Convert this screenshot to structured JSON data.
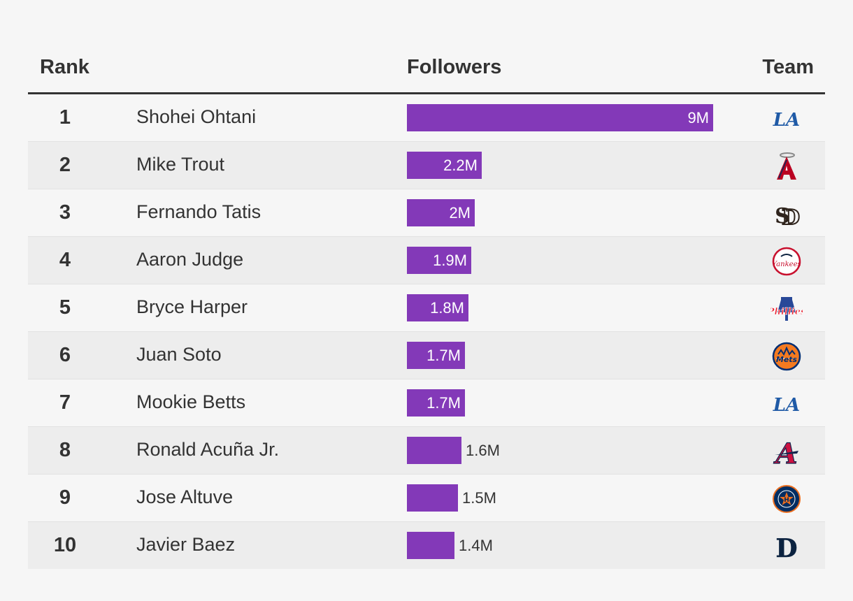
{
  "headers": {
    "rank": "Rank",
    "followers": "Followers",
    "team": "Team"
  },
  "chart_data": {
    "type": "bar",
    "orientation": "horizontal",
    "max_value": 9,
    "unit_suffix": "M",
    "rows": [
      {
        "rank": "1",
        "name": "Shohei Ohtani",
        "value": 9,
        "label": "9M",
        "team": "Los Angeles Dodgers",
        "logo": "dodgers-logo"
      },
      {
        "rank": "2",
        "name": "Mike Trout",
        "value": 2.2,
        "label": "2.2M",
        "team": "Los Angeles Angels",
        "logo": "angels-logo"
      },
      {
        "rank": "3",
        "name": "Fernando Tatis",
        "value": 2,
        "label": "2M",
        "team": "San Diego Padres",
        "logo": "padres-logo"
      },
      {
        "rank": "4",
        "name": "Aaron Judge",
        "value": 1.9,
        "label": "1.9M",
        "team": "New York Yankees",
        "logo": "yankees-logo"
      },
      {
        "rank": "5",
        "name": "Bryce Harper",
        "value": 1.8,
        "label": "1.8M",
        "team": "Philadelphia Phillies",
        "logo": "phillies-logo"
      },
      {
        "rank": "6",
        "name": "Juan Soto",
        "value": 1.7,
        "label": "1.7M",
        "team": "New York Mets",
        "logo": "mets-logo"
      },
      {
        "rank": "7",
        "name": "Mookie Betts",
        "value": 1.7,
        "label": "1.7M",
        "team": "Los Angeles Dodgers",
        "logo": "dodgers-logo"
      },
      {
        "rank": "8",
        "name": "Ronald Acuña Jr.",
        "value": 1.6,
        "label": "1.6M",
        "team": "Atlanta Braves",
        "logo": "braves-logo"
      },
      {
        "rank": "9",
        "name": "Jose Altuve",
        "value": 1.5,
        "label": "1.5M",
        "team": "Houston Astros",
        "logo": "astros-logo"
      },
      {
        "rank": "10",
        "name": "Javier Baez",
        "value": 1.4,
        "label": "1.4M",
        "team": "Detroit Tigers",
        "logo": "tigers-logo"
      }
    ]
  },
  "colors": {
    "bar": "#8339b8",
    "text": "#333333",
    "row_alt": "#ededed",
    "background": "#f6f6f6"
  }
}
